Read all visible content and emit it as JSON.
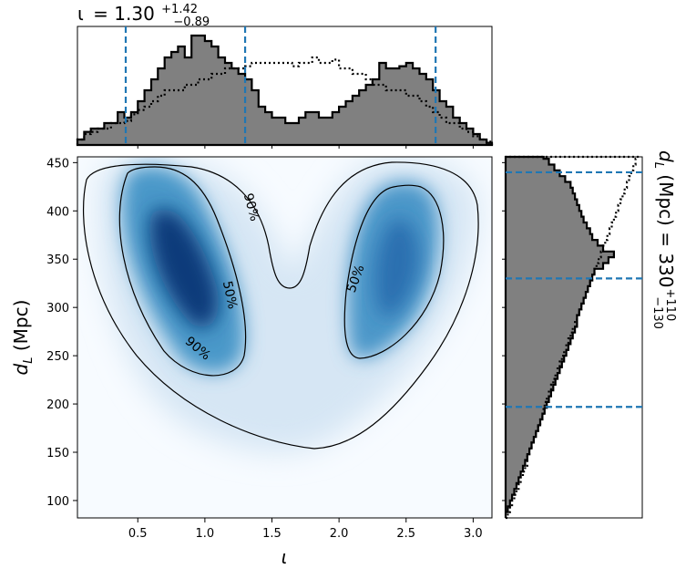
{
  "chart_data": [
    {
      "id": "top-marginal",
      "type": "histogram",
      "title_parts": {
        "symbol": "ι",
        "value": "= 1.30",
        "upper": "+1.42",
        "lower": "−0.89"
      },
      "x_range": [
        0.05,
        3.14
      ],
      "bin_edges_start": 0.05,
      "bin_width": 0.05,
      "series": [
        {
          "name": "",
          "style": "filled",
          "fill": "#808080",
          "edge": "#000000",
          "values": [
            0.05,
            0.12,
            0.15,
            0.15,
            0.2,
            0.2,
            0.3,
            0.25,
            0.3,
            0.4,
            0.5,
            0.6,
            0.7,
            0.8,
            0.85,
            0.9,
            0.8,
            1.0,
            1.0,
            0.95,
            0.9,
            0.8,
            0.75,
            0.7,
            0.65,
            0.6,
            0.5,
            0.35,
            0.3,
            0.25,
            0.25,
            0.2,
            0.2,
            0.25,
            0.3,
            0.3,
            0.25,
            0.25,
            0.3,
            0.35,
            0.4,
            0.45,
            0.5,
            0.55,
            0.6,
            0.75,
            0.7,
            0.7,
            0.72,
            0.75,
            0.7,
            0.65,
            0.6,
            0.5,
            0.4,
            0.35,
            0.25,
            0.2,
            0.15,
            0.1,
            0.05,
            0.02
          ]
        },
        {
          "name": "",
          "style": "dotted",
          "edge": "#000000",
          "values": [
            0.05,
            0.1,
            0.12,
            0.15,
            0.15,
            0.2,
            0.2,
            0.22,
            0.28,
            0.32,
            0.35,
            0.4,
            0.45,
            0.5,
            0.5,
            0.5,
            0.55,
            0.55,
            0.6,
            0.6,
            0.65,
            0.65,
            0.7,
            0.7,
            0.7,
            0.72,
            0.75,
            0.75,
            0.75,
            0.75,
            0.75,
            0.75,
            0.72,
            0.75,
            0.75,
            0.8,
            0.75,
            0.75,
            0.78,
            0.7,
            0.7,
            0.65,
            0.65,
            0.6,
            0.55,
            0.55,
            0.5,
            0.5,
            0.5,
            0.45,
            0.45,
            0.4,
            0.35,
            0.3,
            0.25,
            0.2,
            0.2,
            0.15,
            0.12,
            0.08,
            0.05,
            0.03
          ]
        }
      ],
      "credible_lines": [
        0.41,
        1.3,
        2.72
      ],
      "line_color": "#1f77b4"
    },
    {
      "id": "main-density",
      "type": "heatmap",
      "xlabel_symbol": "ι",
      "ylabel_parts": {
        "symbol": "d",
        "sub": "L",
        "rest": " (Mpc)"
      },
      "x_range": [
        0.05,
        3.14
      ],
      "y_range": [
        82,
        456
      ],
      "x_ticks": [
        0.5,
        1.0,
        1.5,
        2.0,
        2.5,
        3.0
      ],
      "x_tick_labels": [
        "0.5",
        "1.0",
        "1.5",
        "2.0",
        "2.5",
        "3.0"
      ],
      "y_ticks": [
        100,
        150,
        200,
        250,
        300,
        350,
        400,
        450
      ],
      "y_tick_labels": [
        "100",
        "150",
        "200",
        "250",
        "300",
        "350",
        "400",
        "450"
      ],
      "colormap": "Blues",
      "contour_labels": [
        {
          "text": "90%",
          "x": 0.95,
          "y": 258,
          "angle": 40
        },
        {
          "text": "50%",
          "x": 1.19,
          "y": 313,
          "angle": 78
        },
        {
          "text": "90%",
          "x": 1.35,
          "y": 404,
          "angle": 75
        },
        {
          "text": "50%",
          "x": 2.12,
          "y": 330,
          "angle": -70
        }
      ]
    },
    {
      "id": "right-marginal",
      "type": "histogram",
      "orientation": "horizontal",
      "label_parts": {
        "symbol": "d",
        "sub": "L",
        "rest": " (Mpc) = 330",
        "upper": "+110",
        "lower": "−130"
      },
      "y_range": [
        82,
        456
      ],
      "bin_edges_start": 82,
      "bin_width": 6,
      "series": [
        {
          "name": "",
          "style": "filled",
          "fill": "#808080",
          "edge": "#000000",
          "values": [
            0.0,
            0.02,
            0.04,
            0.06,
            0.08,
            0.1,
            0.12,
            0.14,
            0.16,
            0.18,
            0.2,
            0.22,
            0.24,
            0.26,
            0.28,
            0.3,
            0.32,
            0.34,
            0.36,
            0.38,
            0.4,
            0.42,
            0.44,
            0.46,
            0.48,
            0.5,
            0.52,
            0.54,
            0.56,
            0.58,
            0.6,
            0.62,
            0.64,
            0.66,
            0.66,
            0.68,
            0.7,
            0.72,
            0.74,
            0.76,
            0.78,
            0.8,
            0.82,
            0.9,
            0.95,
            1.0,
            0.9,
            0.85,
            0.8,
            0.78,
            0.75,
            0.72,
            0.7,
            0.68,
            0.66,
            0.64,
            0.62,
            0.6,
            0.55,
            0.5,
            0.45,
            0.4,
            0.35
          ]
        },
        {
          "name": "",
          "style": "dotted",
          "edge": "#000000",
          "values": [
            0.02,
            0.04,
            0.06,
            0.08,
            0.1,
            0.12,
            0.14,
            0.16,
            0.18,
            0.2,
            0.2,
            0.22,
            0.24,
            0.26,
            0.28,
            0.3,
            0.32,
            0.34,
            0.35,
            0.36,
            0.38,
            0.4,
            0.42,
            0.44,
            0.46,
            0.48,
            0.5,
            0.52,
            0.54,
            0.56,
            0.58,
            0.6,
            0.62,
            0.64,
            0.66,
            0.68,
            0.7,
            0.72,
            0.74,
            0.76,
            0.78,
            0.8,
            0.82,
            0.84,
            0.86,
            0.88,
            0.9,
            0.92,
            0.94,
            0.96,
            0.98,
            1.0,
            1.02,
            1.04,
            1.06,
            1.08,
            1.1,
            1.12,
            1.14,
            1.16,
            1.18,
            1.2,
            1.22
          ]
        }
      ],
      "credible_lines": [
        197,
        330,
        440
      ],
      "line_color": "#1f77b4"
    }
  ]
}
